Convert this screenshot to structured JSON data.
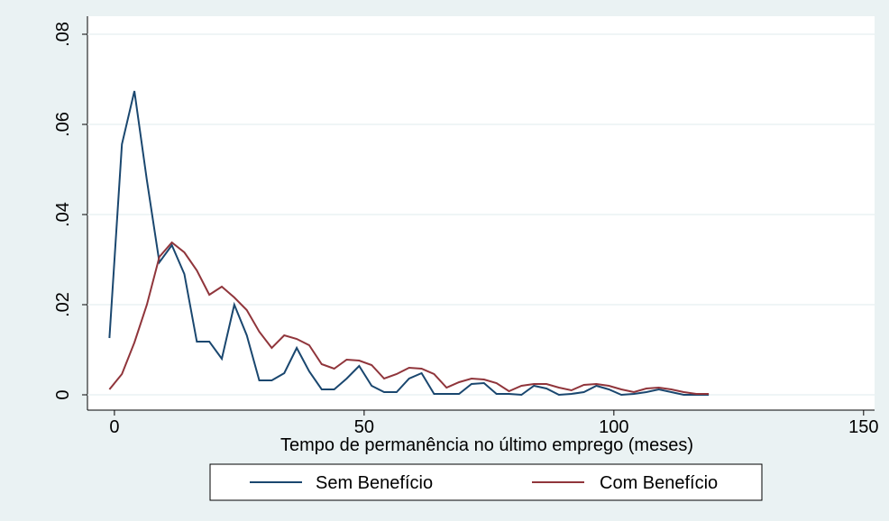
{
  "chart_data": {
    "type": "line",
    "xlabel": "Tempo de permanência no último emprego (meses)",
    "x": [
      -1,
      1.5,
      4,
      6.5,
      9,
      11.5,
      14,
      16.5,
      19,
      21.5,
      24,
      26.5,
      29,
      31.5,
      34,
      36.5,
      39,
      41.5,
      44,
      46.5,
      49,
      51.5,
      54,
      56.5,
      59,
      61.5,
      64,
      66.5,
      69,
      71.5,
      74,
      76.5,
      79,
      81.5,
      84,
      86.5,
      89,
      91.5,
      94,
      96.5,
      99,
      101.5,
      104,
      106.5,
      109,
      111.5,
      114,
      116.5,
      119
    ],
    "series": [
      {
        "name": "Sem Benefício",
        "color": "#1a476f",
        "values": [
          0.0126,
          0.0556,
          0.0674,
          0.0476,
          0.0294,
          0.0332,
          0.0268,
          0.0118,
          0.0118,
          0.008,
          0.02,
          0.0132,
          0.0032,
          0.0032,
          0.0048,
          0.0104,
          0.0052,
          0.0012,
          0.0012,
          0.0036,
          0.0064,
          0.002,
          0.0006,
          0.0006,
          0.0036,
          0.0048,
          0.0002,
          0.0002,
          0.0002,
          0.0024,
          0.0026,
          0.0002,
          0.0002,
          0,
          0.002,
          0.0014,
          0,
          0.0002,
          0.0006,
          0.002,
          0.0012,
          0,
          0.0002,
          0.0006,
          0.0012,
          0.0006,
          0,
          0,
          0
        ]
      },
      {
        "name": "Com Benefício",
        "color": "#90353b",
        "values": [
          0.0012,
          0.0046,
          0.0116,
          0.02,
          0.0306,
          0.0338,
          0.0316,
          0.0276,
          0.0222,
          0.024,
          0.0216,
          0.0188,
          0.014,
          0.0104,
          0.0132,
          0.0124,
          0.011,
          0.0068,
          0.0058,
          0.0078,
          0.0076,
          0.0066,
          0.0036,
          0.0046,
          0.006,
          0.0058,
          0.0046,
          0.0016,
          0.0028,
          0.0036,
          0.0034,
          0.0026,
          0.0008,
          0.002,
          0.0024,
          0.0024,
          0.0016,
          0.001,
          0.0022,
          0.0024,
          0.002,
          0.0012,
          0.0006,
          0.0014,
          0.0016,
          0.0012,
          0.0006,
          0.0002,
          0.0002
        ]
      }
    ],
    "xlim": [
      -5.4,
      152.2
    ],
    "xticks": [
      0,
      50,
      100,
      150
    ],
    "ylim": [
      -0.0034,
      0.084
    ],
    "yticks": [
      0,
      {
        "value": 0.02,
        "label": ".02"
      },
      {
        "value": 0.04,
        "label": ".04"
      },
      {
        "value": 0.06,
        "label": ".06"
      },
      {
        "value": 0.08,
        "label": ".08"
      }
    ],
    "grid": true
  }
}
